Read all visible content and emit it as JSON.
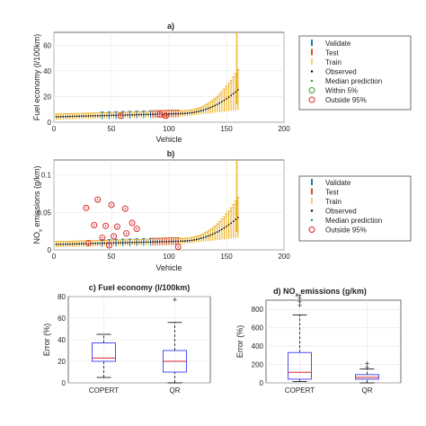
{
  "colors": {
    "validate": "#1f77b4",
    "test": "#d95319",
    "train": "#edb120",
    "observed": "#000000",
    "median": "#2ca02c",
    "within5": "#2ca02c",
    "outside95": "#d62728",
    "box": "#4d4dff",
    "boxMedian": "#d62728",
    "outlier": "#d62728",
    "grid": "#e6e6e6",
    "axis": "#333333"
  },
  "chart_data": [
    {
      "panel": "a)",
      "type": "scatter",
      "xlabel": "Vehicle",
      "ylabel": "Fuel economy (l/100km)",
      "xlim": [
        0,
        200
      ],
      "ylim": [
        0,
        70
      ],
      "xticks": [
        "0",
        "50",
        "100",
        "150",
        "200"
      ],
      "yticks": [
        "0",
        "20",
        "40",
        "60"
      ],
      "legend": [
        "Validate",
        "Test",
        "Train",
        "Observed",
        "Median prediction",
        "Within 5%",
        "Outside 95%"
      ],
      "legend_position": "right",
      "outside95_points": [
        {
          "x": 58,
          "y": 5
        },
        {
          "x": 92,
          "y": 6
        },
        {
          "x": 97,
          "y": 5
        }
      ]
    },
    {
      "panel": "b)",
      "type": "scatter",
      "xlabel": "Vehicle",
      "ylabel": "NOx emissions (g/km)",
      "xlim": [
        0,
        200
      ],
      "ylim": [
        0,
        0.12
      ],
      "xticks": [
        "0",
        "50",
        "100",
        "150",
        "200"
      ],
      "yticks": [
        "0",
        "0.05",
        "0.1"
      ],
      "legend": [
        "Validate",
        "Test",
        "Train",
        "Observed",
        "Median prediction",
        "Outside 95%"
      ],
      "legend_position": "right",
      "outside95_points": [
        {
          "x": 28,
          "y": 0.056
        },
        {
          "x": 38,
          "y": 0.067
        },
        {
          "x": 50,
          "y": 0.06
        },
        {
          "x": 62,
          "y": 0.055
        },
        {
          "x": 35,
          "y": 0.033
        },
        {
          "x": 45,
          "y": 0.032
        },
        {
          "x": 55,
          "y": 0.031
        },
        {
          "x": 68,
          "y": 0.036
        },
        {
          "x": 72,
          "y": 0.028
        },
        {
          "x": 42,
          "y": 0.016
        },
        {
          "x": 52,
          "y": 0.018
        },
        {
          "x": 63,
          "y": 0.022
        },
        {
          "x": 30,
          "y": 0.009
        },
        {
          "x": 48,
          "y": 0.006
        },
        {
          "x": 108,
          "y": 0.004
        }
      ]
    },
    {
      "panel": "c)",
      "type": "box",
      "title": "c) Fuel economy (l/100km)",
      "ylabel": "Error (%)",
      "categories": [
        "COPERT",
        "QR"
      ],
      "ylim": [
        0,
        80
      ],
      "yticks": [
        "0",
        "20",
        "40",
        "60",
        "80"
      ],
      "boxes": [
        {
          "name": "COPERT",
          "min": 5,
          "q1": 20,
          "median": 23,
          "q3": 37,
          "max": 45,
          "outliers": []
        },
        {
          "name": "QR",
          "min": 0,
          "q1": 10,
          "median": 20,
          "q3": 30,
          "max": 56,
          "outliers": [
            77
          ]
        }
      ]
    },
    {
      "panel": "d)",
      "type": "box",
      "title_prefix": "d) NO",
      "title_sub": "x",
      "title_suffix": " emissions (g/km)",
      "ylabel": "Error (%)",
      "categories": [
        "COPERT",
        "QR"
      ],
      "ylim": [
        0,
        900
      ],
      "yticks": [
        "0",
        "200",
        "400",
        "600",
        "800"
      ],
      "boxes": [
        {
          "name": "COPERT",
          "min": 15,
          "q1": 40,
          "median": 115,
          "q3": 330,
          "max": 740,
          "outliers": [
            840,
            880,
            920,
            950
          ]
        },
        {
          "name": "QR",
          "min": 0,
          "q1": 40,
          "median": 60,
          "q3": 90,
          "max": 150,
          "outliers": [
            165,
            210
          ]
        }
      ]
    }
  ]
}
